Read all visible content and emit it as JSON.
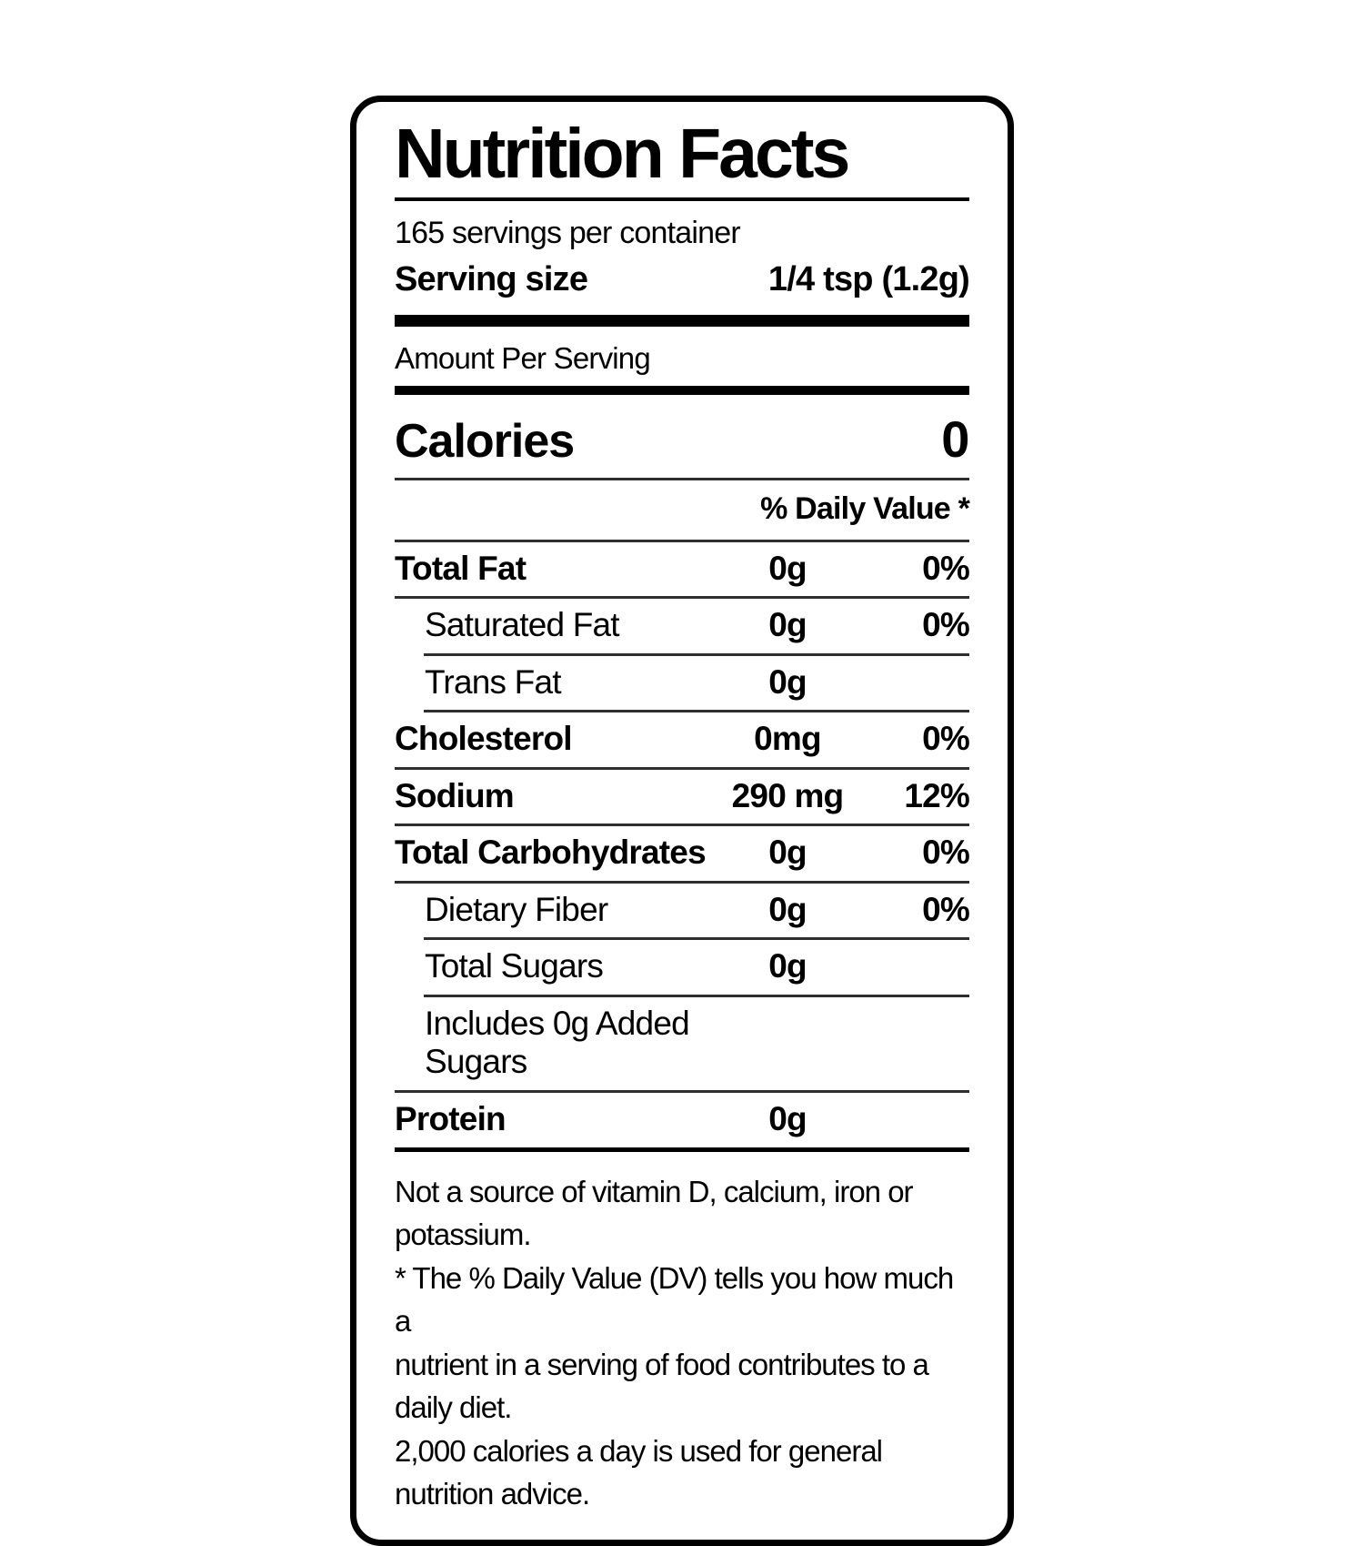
{
  "nutrition": {
    "title": "Nutrition Facts",
    "servings_per_container": "165 servings per container",
    "serving_size": {
      "label": "Serving size",
      "value": "1/4 tsp (1.2g)"
    },
    "amount_per_serving": "Amount Per Serving",
    "calories": {
      "label": "Calories",
      "value": "0"
    },
    "daily_value_header": "% Daily Value *",
    "rows": [
      {
        "name": "Total Fat",
        "amount": "0g",
        "dv": "0%"
      },
      {
        "name": "Saturated Fat",
        "amount": "0g",
        "dv": "0%"
      },
      {
        "name": "Trans Fat",
        "amount": "0g",
        "dv": ""
      },
      {
        "name": "Cholesterol",
        "amount": "0mg",
        "dv": "0%"
      },
      {
        "name": "Sodium",
        "amount": "290 mg",
        "dv": "12%"
      },
      {
        "name": "Total Carbohydrates",
        "amount": "0g",
        "dv": "0%"
      },
      {
        "name": "Dietary Fiber",
        "amount": "0g",
        "dv": "0%"
      },
      {
        "name": "Total Sugars",
        "amount": "0g",
        "dv": ""
      },
      {
        "name": "Includes 0g Added Sugars",
        "amount": "",
        "dv": ""
      },
      {
        "name": "Protein",
        "amount": "0g",
        "dv": ""
      }
    ],
    "footnote_lines": [
      "Not a source of vitamin D, calcium, iron or potassium.",
      "* The % Daily Value (DV) tells you how much a",
      "nutrient in a serving of food contributes to a daily diet.",
      "2,000 calories a day is used for general nutrition advice."
    ]
  },
  "colors": {
    "text": "#000000",
    "background": "#ffffff",
    "border": "#000000",
    "hairline": "#2e2e2e"
  }
}
